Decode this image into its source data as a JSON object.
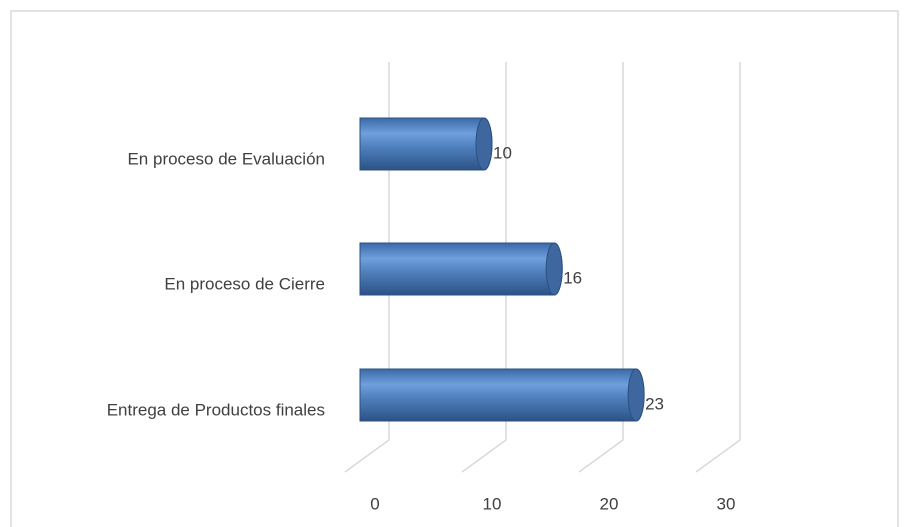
{
  "chart_data": {
    "type": "bar",
    "orientation": "horizontal",
    "categories": [
      "En proceso de Evaluación",
      "En proceso de Cierre",
      "Entrega de Productos finales"
    ],
    "values": [
      10,
      16,
      23
    ],
    "color": "#4f81bd",
    "xlim": [
      0,
      30
    ],
    "xticks": [
      0,
      10,
      20,
      30
    ],
    "grid": true
  }
}
